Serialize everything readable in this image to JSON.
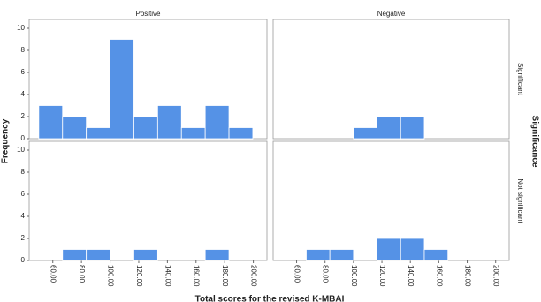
{
  "chart_data": {
    "type": "histogram",
    "y_label": "Frequency",
    "x_label": "Total scores for the revised K-MBAI",
    "row_facet_label": "Significance",
    "columns": [
      "Positive",
      "Negative"
    ],
    "rows": [
      "Significant",
      "Not significant"
    ],
    "color": "#5592e6",
    "bins": [
      50.2,
      66.8,
      83.4,
      100,
      116.6,
      133.2,
      149.8,
      166.4,
      183,
      199.6
    ],
    "panels": [
      [
        [
          3,
          2,
          1,
          9,
          2,
          3,
          1,
          3,
          1
        ],
        [
          0,
          0,
          0,
          1,
          2,
          2,
          0,
          0,
          0
        ]
      ],
      [
        [
          0,
          1,
          1,
          0,
          1,
          0,
          0,
          1,
          0
        ],
        [
          0,
          1,
          1,
          0,
          2,
          2,
          1,
          0,
          0
        ]
      ]
    ],
    "xlim": [
      43.5,
      209.5
    ],
    "xticks": [
      {
        "value": 60,
        "label": "60.00"
      },
      {
        "value": 80,
        "label": "80.00"
      },
      {
        "value": 100,
        "label": "100.00"
      },
      {
        "value": 120,
        "label": "120.00"
      },
      {
        "value": 140,
        "label": "140.00"
      },
      {
        "value": 160,
        "label": "160.00"
      },
      {
        "value": 180,
        "label": "180.00"
      },
      {
        "value": 200,
        "label": "200.00"
      }
    ],
    "ylim": [
      0,
      10.8
    ],
    "yticks": [
      0,
      2,
      4,
      6,
      8,
      10
    ]
  }
}
